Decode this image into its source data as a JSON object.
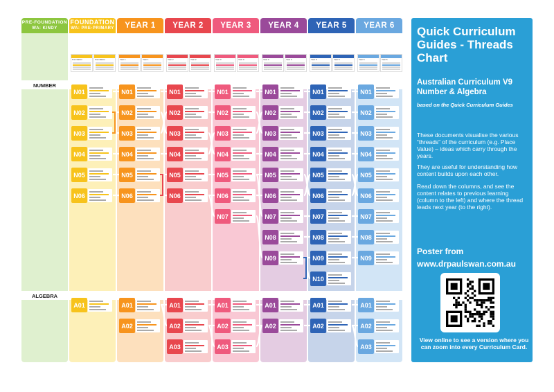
{
  "columns": [
    {
      "line1": "PRE-FOUNDATION",
      "line2": "WA: KINDY",
      "color": "#8dc63f",
      "light": "#dff0cf"
    },
    {
      "line1": "FOUNDATION",
      "line2": "WA: PRE-PRIMARY",
      "color": "#f7c31c",
      "light": "#fdf0b8"
    },
    {
      "line1": "YEAR 1",
      "line2": "",
      "color": "#f7941d",
      "light": "#fde0bd"
    },
    {
      "line1": "YEAR 2",
      "line2": "",
      "color": "#e8474e",
      "light": "#f9cccd"
    },
    {
      "line1": "YEAR 3",
      "line2": "",
      "color": "#ef5a7d",
      "light": "#f9c8d4"
    },
    {
      "line1": "YEAR 4",
      "line2": "",
      "color": "#9a4a9a",
      "light": "#e4cce2"
    },
    {
      "line1": "YEAR 5",
      "line2": "",
      "color": "#2e64b6",
      "light": "#c6d4ea"
    },
    {
      "line1": "YEAR 6",
      "line2": "",
      "color": "#6aa8e0",
      "light": "#d2e5f6"
    }
  ],
  "thumbnails": [
    {
      "left": "Foundation",
      "right": "Foundation"
    },
    {
      "left": "Year 1",
      "right": "Year 1"
    },
    {
      "left": "Year 2",
      "right": "Year 2"
    },
    {
      "left": "Year 3",
      "right": "Year 3"
    },
    {
      "left": "Year 4",
      "right": "Year 4"
    },
    {
      "left": "Year 5",
      "right": "Year 5"
    },
    {
      "left": "Year 6",
      "right": "Year 6"
    }
  ],
  "strands": {
    "number": "NUMBER",
    "algebra": "ALGEBRA"
  },
  "number_cards": [
    [
      "N01",
      "N02",
      "N03",
      "N04",
      "N05",
      "N06"
    ],
    [
      "N01",
      "N02",
      "N03",
      "N04",
      "N05",
      "N06"
    ],
    [
      "N01",
      "N02",
      "N03",
      "N04",
      "N05",
      "N06"
    ],
    [
      "N01",
      "N02",
      "N03",
      "N04",
      "N05",
      "N06",
      "N07"
    ],
    [
      "N01",
      "N02",
      "N03",
      "N04",
      "N05",
      "N06",
      "N07",
      "N08",
      "N09"
    ],
    [
      "N01",
      "N02",
      "N03",
      "N04",
      "N05",
      "N06",
      "N07",
      "N08",
      "N09",
      "N10"
    ],
    [
      "N01",
      "N02",
      "N03",
      "N04",
      "N05",
      "N06",
      "N07",
      "N08",
      "N09"
    ]
  ],
  "algebra_cards": [
    [
      "A01"
    ],
    [
      "A01",
      "A02"
    ],
    [
      "A01",
      "A02",
      "A03"
    ],
    [
      "A01",
      "A02",
      "A03"
    ],
    [
      "A01",
      "A02"
    ],
    [
      "A01",
      "A02"
    ],
    [
      "A01",
      "A02",
      "A03"
    ]
  ],
  "panel": {
    "title": "Quick Curriculum Guides - Threads Chart",
    "subtitle": "Australian Curriculum V9 Number & Algebra",
    "based_on": "based on the Quick Curriculum Guides",
    "para1": "These documents visualise the various “threads” of the curriculum (e.g. Place Value) –  ideas which carry through the years.",
    "para2": "They are useful for understanding how content builds upon each other.",
    "para3": "Read down the columns, and see the content relates to previous learning (column to the left) and where the thread leads next year (to the right).",
    "poster_line1": "Poster from",
    "poster_line2": "www.drpaulswan.com.au",
    "caption": "View online to see a version where you can zoom into every Curriculum Card.",
    "color": "#2a9fd6"
  }
}
